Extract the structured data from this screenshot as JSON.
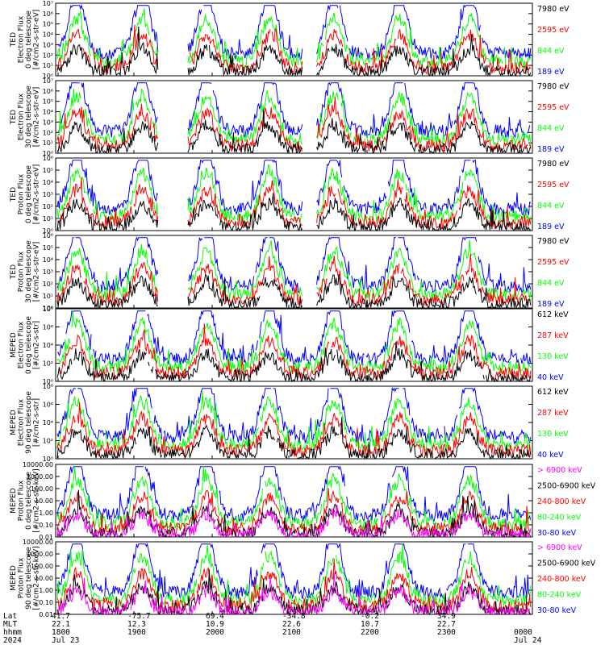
{
  "colors": {
    "black": "#000000",
    "red": "#ff0000",
    "green": "#00ff00",
    "blue": "#0000ff",
    "magenta": "#ff00ff"
  },
  "chart_data": [
    {
      "type": "line",
      "ylabel": [
        "TED",
        "Electron Flux",
        "0 deg telescope",
        "[#/cm2-s-str-eV]"
      ],
      "scale": "log",
      "ylim": [
        1,
        10000000
      ],
      "yticks": [
        "10⁷",
        "10⁶",
        "10⁵",
        "10⁴",
        "10³",
        "10²",
        "10¹",
        "10⁰"
      ],
      "legend": [
        {
          "label": "7980 eV",
          "color": "black"
        },
        {
          "label": "2595 eV",
          "color": "red"
        },
        {
          "label": "844 eV",
          "color": "green"
        },
        {
          "label": "189 eV",
          "color": "blue"
        }
      ]
    },
    {
      "type": "line",
      "ylabel": [
        "TED",
        "Electron Flux",
        "30 deg telescope",
        "[#/cm2-s-str-eV]"
      ],
      "scale": "log",
      "ylim": [
        1,
        10000000
      ],
      "yticks": [
        "10⁷",
        "10⁶",
        "10⁵",
        "10⁴",
        "10³",
        "10²",
        "10¹",
        "10⁰"
      ],
      "legend": [
        {
          "label": "7980 eV",
          "color": "black"
        },
        {
          "label": "2595 eV",
          "color": "red"
        },
        {
          "label": "844 eV",
          "color": "green"
        },
        {
          "label": "189 eV",
          "color": "blue"
        }
      ]
    },
    {
      "type": "line",
      "ylabel": [
        "TED",
        "Proton Flux",
        "0 deg telescope",
        "[#/cm2-s-str-eV]"
      ],
      "scale": "log",
      "ylim": [
        1,
        1000000
      ],
      "yticks": [
        "10⁶",
        "10⁵",
        "10⁴",
        "10³",
        "10²",
        "10¹",
        "10⁰"
      ],
      "legend": [
        {
          "label": "7980 eV",
          "color": "black"
        },
        {
          "label": "2595 eV",
          "color": "red"
        },
        {
          "label": "844 eV",
          "color": "green"
        },
        {
          "label": "189 eV",
          "color": "blue"
        }
      ]
    },
    {
      "type": "line",
      "ylabel": [
        "TED",
        "Proton Flux",
        "30 deg telescope",
        "[#/cm2-s-str-eV]"
      ],
      "scale": "log",
      "ylim": [
        1,
        1000000
      ],
      "yticks": [
        "10⁶",
        "10⁵",
        "10⁴",
        "10³",
        "10²",
        "10¹",
        "10⁰"
      ],
      "legend": [
        {
          "label": "7980 eV",
          "color": "black"
        },
        {
          "label": "2595 eV",
          "color": "red"
        },
        {
          "label": "844 eV",
          "color": "green"
        },
        {
          "label": "189 eV",
          "color": "blue"
        }
      ]
    },
    {
      "type": "line",
      "ylabel": [
        "MEPED",
        "Electron Flux",
        "0 deg telescope",
        "[#/cm2-s-str]"
      ],
      "scale": "log",
      "ylim": [
        1,
        100000000
      ],
      "yticks": [
        "10⁸",
        "10⁶",
        "10⁴",
        "10²",
        "10⁰"
      ],
      "legend": [
        {
          "label": "612 keV",
          "color": "black"
        },
        {
          "label": "287 keV",
          "color": "red"
        },
        {
          "label": "130 keV",
          "color": "green"
        },
        {
          "label": "40 keV",
          "color": "blue"
        }
      ]
    },
    {
      "type": "line",
      "ylabel": [
        "MEPED",
        "Electron Flux",
        "90 deg telescope",
        "[#/cm2-s-str]"
      ],
      "scale": "log",
      "ylim": [
        1,
        100000000
      ],
      "yticks": [
        "10⁸",
        "10⁶",
        "10⁴",
        "10²",
        "10⁰"
      ],
      "legend": [
        {
          "label": "612 keV",
          "color": "black"
        },
        {
          "label": "287 keV",
          "color": "red"
        },
        {
          "label": "130 keV",
          "color": "green"
        },
        {
          "label": "40 keV",
          "color": "blue"
        }
      ]
    },
    {
      "type": "line",
      "ylabel": [
        "MEPED",
        "Proton Flux",
        "0 deg telescope",
        "[#/cm2-s-str-keV]"
      ],
      "scale": "log",
      "ylim": [
        0.01,
        10000
      ],
      "yticks": [
        "10000.00",
        "1000.00",
        "100.00",
        "10.00",
        "1.00",
        "0.10",
        "0.01"
      ],
      "legend": [
        {
          "label": "> 6900 keV",
          "color": "magenta"
        },
        {
          "label": "2500-6900 keV",
          "color": "black"
        },
        {
          "label": "240-800 keV",
          "color": "red"
        },
        {
          "label": "80-240 keV",
          "color": "green"
        },
        {
          "label": "30-80 keV",
          "color": "blue"
        }
      ]
    },
    {
      "type": "line",
      "ylabel": [
        "MEPED",
        "Proton Flux",
        "90 deg telescope",
        "[#/cm2-s-str-keV]"
      ],
      "scale": "log",
      "ylim": [
        0.01,
        10000
      ],
      "yticks": [
        "10000.00",
        "1000.00",
        "100.00",
        "10.00",
        "1.00",
        "0.10",
        "0.01"
      ],
      "legend": [
        {
          "label": "> 6900 keV",
          "color": "magenta"
        },
        {
          "label": "2500-6900 keV",
          "color": "black"
        },
        {
          "label": "240-800 keV",
          "color": "red"
        },
        {
          "label": "80-240 keV",
          "color": "green"
        },
        {
          "label": "30-80 keV",
          "color": "blue"
        }
      ]
    }
  ],
  "x_axis": {
    "row_labels": [
      "Lat",
      "MLT",
      "hhmm",
      "2024"
    ],
    "columns": [
      {
        "lat": "41.7",
        "mlt": "22.1",
        "hhmm": "1800",
        "date": "Jul 23"
      },
      {
        "lat": "-75.7",
        "mlt": "12.3",
        "hhmm": "1900",
        "date": ""
      },
      {
        "lat": "69.4",
        "mlt": "10.9",
        "hhmm": "2000",
        "date": ""
      },
      {
        "lat": "-34.8",
        "mlt": "22.6",
        "hhmm": "2100",
        "date": ""
      },
      {
        "lat": "-0.2",
        "mlt": "10.7",
        "hhmm": "2200",
        "date": ""
      },
      {
        "lat": "34.9",
        "mlt": "22.7",
        "hhmm": "2300",
        "date": ""
      },
      {
        "lat": "",
        "mlt": "",
        "hhmm": "0000",
        "date": "Jul 24"
      }
    ]
  }
}
